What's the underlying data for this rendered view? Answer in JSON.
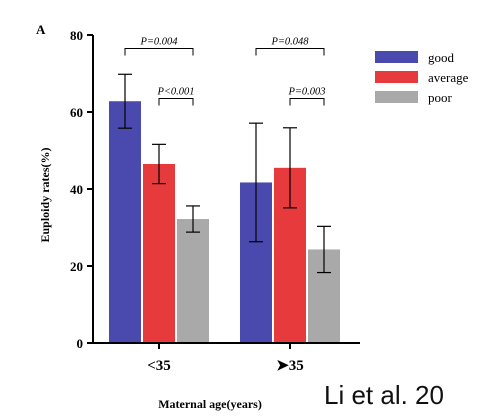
{
  "panel_label": "A",
  "citation": "Li et al. 20",
  "chart_data": {
    "type": "bar",
    "xlabel": "Maternal age(years)",
    "ylabel": "Euploidy rates(%)",
    "ylim": [
      0,
      80
    ],
    "yticks": [
      0,
      20,
      40,
      60,
      80
    ],
    "categories": [
      "<35",
      "≥35"
    ],
    "category_display": [
      "<35",
      "➤35"
    ],
    "legend_position": "top-right",
    "grid": false,
    "series": [
      {
        "name": "good",
        "color": "#4a4aae",
        "values": [
          62.8,
          41.7
        ],
        "error": [
          7.0,
          15.4
        ]
      },
      {
        "name": "average",
        "color": "#e63a3c",
        "values": [
          46.5,
          45.5
        ],
        "error": [
          5.1,
          10.4
        ]
      },
      {
        "name": "poor",
        "color": "#a9a9a9",
        "values": [
          32.2,
          24.3
        ],
        "error": [
          3.4,
          6.0
        ]
      }
    ],
    "annotations": [
      {
        "category": 0,
        "from_series": 0,
        "to_series": 2,
        "level": 76.5,
        "text": "P=0.004"
      },
      {
        "category": 0,
        "from_series": 1,
        "to_series": 2,
        "level": 63.5,
        "text": "P<0.001"
      },
      {
        "category": 1,
        "from_series": 0,
        "to_series": 2,
        "level": 76.5,
        "text": "P=0.048"
      },
      {
        "category": 1,
        "from_series": 1,
        "to_series": 2,
        "level": 63.5,
        "text": "P=0.003"
      }
    ]
  }
}
